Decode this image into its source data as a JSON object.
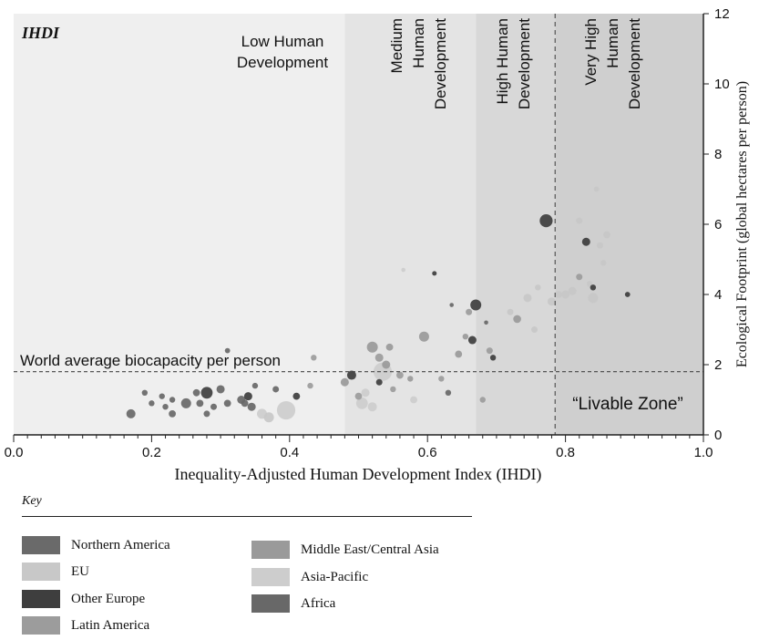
{
  "chart_data": {
    "type": "scatter",
    "corner_label": "IHDI",
    "xlabel": "Inequality-Adjusted Human Development Index (IHDI)",
    "ylabel": "Ecological Footprint (global hectares per person)",
    "xlim": [
      0,
      1.0
    ],
    "ylim": [
      0,
      12
    ],
    "xticks": [
      "0.0",
      "0.2",
      "0.4",
      "0.6",
      "0.8",
      "1.0"
    ],
    "yticks": [
      "0",
      "2",
      "4",
      "6",
      "8",
      "10",
      "12"
    ],
    "y_axis_side": "right",
    "bands": [
      {
        "label": "Low Human Development",
        "x_from": 0.0,
        "x_to": 0.48,
        "shade": "#efefef"
      },
      {
        "label": "Medium Human Development",
        "x_from": 0.48,
        "x_to": 0.67,
        "shade": "#e4e4e4"
      },
      {
        "label": "High Human Development",
        "x_from": 0.67,
        "x_to": 0.785,
        "shade": "#d8d8d8"
      },
      {
        "label": "Very High Human Development",
        "x_from": 0.785,
        "x_to": 1.0,
        "shade": "#cfcfcf"
      }
    ],
    "reference_lines": [
      {
        "label": "World average biocapacity per person",
        "axis": "y",
        "value": 1.8
      },
      {
        "axis": "x",
        "value": 0.785
      }
    ],
    "zone_label": "“Livable Zone”",
    "legend": {
      "title": "Key",
      "entries": [
        {
          "name": "Northern America",
          "color": "#6a6a6a"
        },
        {
          "name": "EU",
          "color": "#c8c8c8"
        },
        {
          "name": "Other Europe",
          "color": "#3e3e3e"
        },
        {
          "name": "Latin America",
          "color": "#9c9c9c"
        },
        {
          "name": "Middle East/Central Asia",
          "color": "#9a9a9a"
        },
        {
          "name": "Asia-Pacific",
          "color": "#cdcdcd"
        },
        {
          "name": "Africa",
          "color": "#686868"
        }
      ]
    },
    "points": [
      {
        "x": 0.17,
        "y": 0.6,
        "size": 2.5,
        "region": "Africa"
      },
      {
        "x": 0.19,
        "y": 1.2,
        "size": 1.0,
        "region": "Africa"
      },
      {
        "x": 0.2,
        "y": 0.9,
        "size": 1.0,
        "region": "Africa"
      },
      {
        "x": 0.215,
        "y": 1.1,
        "size": 1.0,
        "region": "Africa"
      },
      {
        "x": 0.22,
        "y": 0.8,
        "size": 1.0,
        "region": "Africa"
      },
      {
        "x": 0.23,
        "y": 1.0,
        "size": 1.0,
        "region": "Africa"
      },
      {
        "x": 0.23,
        "y": 0.6,
        "size": 1.5,
        "region": "Africa"
      },
      {
        "x": 0.25,
        "y": 0.9,
        "size": 3.0,
        "region": "Africa"
      },
      {
        "x": 0.265,
        "y": 1.2,
        "size": 1.5,
        "region": "Africa"
      },
      {
        "x": 0.27,
        "y": 0.9,
        "size": 1.5,
        "region": "Africa"
      },
      {
        "x": 0.28,
        "y": 1.2,
        "size": 4.0,
        "region": "Other Europe"
      },
      {
        "x": 0.28,
        "y": 0.6,
        "size": 1.2,
        "region": "Africa"
      },
      {
        "x": 0.29,
        "y": 0.8,
        "size": 1.2,
        "region": "Africa"
      },
      {
        "x": 0.3,
        "y": 1.3,
        "size": 2.0,
        "region": "Africa"
      },
      {
        "x": 0.31,
        "y": 0.9,
        "size": 1.5,
        "region": "Africa"
      },
      {
        "x": 0.31,
        "y": 2.4,
        "size": 0.8,
        "region": "Africa"
      },
      {
        "x": 0.33,
        "y": 1.0,
        "size": 2.0,
        "region": "Africa"
      },
      {
        "x": 0.335,
        "y": 0.9,
        "size": 1.5,
        "region": "Africa"
      },
      {
        "x": 0.34,
        "y": 1.1,
        "size": 2.0,
        "region": "Other Europe"
      },
      {
        "x": 0.345,
        "y": 0.8,
        "size": 2.0,
        "region": "Africa"
      },
      {
        "x": 0.35,
        "y": 1.4,
        "size": 1.0,
        "region": "Africa"
      },
      {
        "x": 0.36,
        "y": 0.6,
        "size": 3.0,
        "region": "Asia-Pacific"
      },
      {
        "x": 0.37,
        "y": 0.5,
        "size": 3.0,
        "region": "EU"
      },
      {
        "x": 0.38,
        "y": 1.3,
        "size": 1.2,
        "region": "Africa"
      },
      {
        "x": 0.395,
        "y": 0.7,
        "size": 10.0,
        "region": "Asia-Pacific"
      },
      {
        "x": 0.41,
        "y": 1.1,
        "size": 1.5,
        "region": "Other Europe"
      },
      {
        "x": 0.43,
        "y": 1.4,
        "size": 1.0,
        "region": "Latin America"
      },
      {
        "x": 0.435,
        "y": 2.2,
        "size": 1.0,
        "region": "Latin America"
      },
      {
        "x": 0.48,
        "y": 1.5,
        "size": 2.0,
        "region": "Middle East/Central Asia"
      },
      {
        "x": 0.49,
        "y": 1.7,
        "size": 2.5,
        "region": "Other Europe"
      },
      {
        "x": 0.5,
        "y": 1.1,
        "size": 1.5,
        "region": "Latin America"
      },
      {
        "x": 0.505,
        "y": 0.9,
        "size": 4.0,
        "region": "Asia-Pacific"
      },
      {
        "x": 0.51,
        "y": 1.2,
        "size": 2.0,
        "region": "Asia-Pacific"
      },
      {
        "x": 0.52,
        "y": 2.5,
        "size": 3.5,
        "region": "Middle East/Central Asia"
      },
      {
        "x": 0.52,
        "y": 0.8,
        "size": 2.5,
        "region": "Asia-Pacific"
      },
      {
        "x": 0.53,
        "y": 1.5,
        "size": 1.2,
        "region": "Other Europe"
      },
      {
        "x": 0.53,
        "y": 2.2,
        "size": 2.0,
        "region": "Latin America"
      },
      {
        "x": 0.535,
        "y": 1.8,
        "size": 10.0,
        "region": "Asia-Pacific"
      },
      {
        "x": 0.54,
        "y": 2.0,
        "size": 2.0,
        "region": "Middle East/Central Asia"
      },
      {
        "x": 0.545,
        "y": 2.5,
        "size": 1.5,
        "region": "Middle East/Central Asia"
      },
      {
        "x": 0.55,
        "y": 1.3,
        "size": 1.0,
        "region": "Latin America"
      },
      {
        "x": 0.56,
        "y": 1.7,
        "size": 1.5,
        "region": "Latin America"
      },
      {
        "x": 0.565,
        "y": 4.7,
        "size": 0.5,
        "region": "Asia-Pacific"
      },
      {
        "x": 0.575,
        "y": 1.6,
        "size": 1.0,
        "region": "Middle East/Central Asia"
      },
      {
        "x": 0.58,
        "y": 1.0,
        "size": 1.5,
        "region": "Asia-Pacific"
      },
      {
        "x": 0.595,
        "y": 2.8,
        "size": 3.0,
        "region": "Middle East/Central Asia"
      },
      {
        "x": 0.61,
        "y": 4.6,
        "size": 0.6,
        "region": "Other Europe"
      },
      {
        "x": 0.62,
        "y": 1.6,
        "size": 1.0,
        "region": "Latin America"
      },
      {
        "x": 0.63,
        "y": 1.2,
        "size": 1.0,
        "region": "Africa"
      },
      {
        "x": 0.635,
        "y": 3.7,
        "size": 0.5,
        "region": "Africa"
      },
      {
        "x": 0.645,
        "y": 2.3,
        "size": 1.5,
        "region": "Middle East/Central Asia"
      },
      {
        "x": 0.655,
        "y": 2.8,
        "size": 1.0,
        "region": "Middle East/Central Asia"
      },
      {
        "x": 0.66,
        "y": 3.5,
        "size": 1.2,
        "region": "Latin America"
      },
      {
        "x": 0.665,
        "y": 2.7,
        "size": 2.0,
        "region": "Other Europe"
      },
      {
        "x": 0.67,
        "y": 3.7,
        "size": 3.5,
        "region": "Other Europe"
      },
      {
        "x": 0.68,
        "y": 1.0,
        "size": 1.0,
        "region": "Latin America"
      },
      {
        "x": 0.685,
        "y": 3.2,
        "size": 0.5,
        "region": "Africa"
      },
      {
        "x": 0.69,
        "y": 2.4,
        "size": 1.2,
        "region": "Latin America"
      },
      {
        "x": 0.695,
        "y": 2.2,
        "size": 1.0,
        "region": "Other Europe"
      },
      {
        "x": 0.72,
        "y": 3.5,
        "size": 1.2,
        "region": "EU"
      },
      {
        "x": 0.73,
        "y": 3.3,
        "size": 1.8,
        "region": "Middle East/Central Asia"
      },
      {
        "x": 0.745,
        "y": 3.9,
        "size": 2.0,
        "region": "EU"
      },
      {
        "x": 0.755,
        "y": 3.0,
        "size": 1.2,
        "region": "EU"
      },
      {
        "x": 0.76,
        "y": 4.2,
        "size": 1.0,
        "region": "EU"
      },
      {
        "x": 0.772,
        "y": 6.1,
        "size": 5.0,
        "region": "Other Europe"
      },
      {
        "x": 0.78,
        "y": 3.8,
        "size": 2.0,
        "region": "EU"
      },
      {
        "x": 0.79,
        "y": 4.0,
        "size": 1.5,
        "region": "EU"
      },
      {
        "x": 0.8,
        "y": 4.0,
        "size": 2.0,
        "region": "EU"
      },
      {
        "x": 0.81,
        "y": 4.1,
        "size": 2.0,
        "region": "EU"
      },
      {
        "x": 0.82,
        "y": 4.5,
        "size": 1.2,
        "region": "Latin America"
      },
      {
        "x": 0.82,
        "y": 6.1,
        "size": 1.2,
        "region": "EU"
      },
      {
        "x": 0.83,
        "y": 5.5,
        "size": 2.0,
        "region": "Other Europe"
      },
      {
        "x": 0.835,
        "y": 4.3,
        "size": 1.0,
        "region": "EU"
      },
      {
        "x": 0.84,
        "y": 3.9,
        "size": 3.0,
        "region": "EU"
      },
      {
        "x": 0.84,
        "y": 4.2,
        "size": 1.0,
        "region": "Other Europe"
      },
      {
        "x": 0.845,
        "y": 7.0,
        "size": 0.8,
        "region": "EU"
      },
      {
        "x": 0.85,
        "y": 5.4,
        "size": 1.2,
        "region": "EU"
      },
      {
        "x": 0.855,
        "y": 4.9,
        "size": 1.0,
        "region": "EU"
      },
      {
        "x": 0.86,
        "y": 5.7,
        "size": 1.5,
        "region": "EU"
      },
      {
        "x": 0.89,
        "y": 4.0,
        "size": 0.8,
        "region": "Other Europe"
      }
    ]
  }
}
